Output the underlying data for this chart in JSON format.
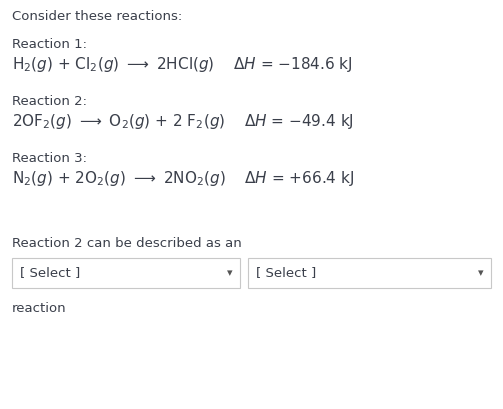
{
  "bg_color": "#ffffff",
  "text_color": "#3a3f4a",
  "label_color": "#3a3f4a",
  "header": "Consider these reactions:",
  "reaction1_label": "Reaction 1:",
  "reaction2_label": "Reaction 2:",
  "reaction3_label": "Reaction 3:",
  "desc_text": "Reaction 2 can be described as an",
  "select_text": "[ Select ]",
  "reaction_text": "reaction",
  "box_color": "#ffffff",
  "box_border": "#c8c8c8",
  "arrow_color": "#555555",
  "font_size_header": 9.5,
  "font_size_label": 9.5,
  "font_size_eq": 11.0,
  "font_size_select": 9.5
}
